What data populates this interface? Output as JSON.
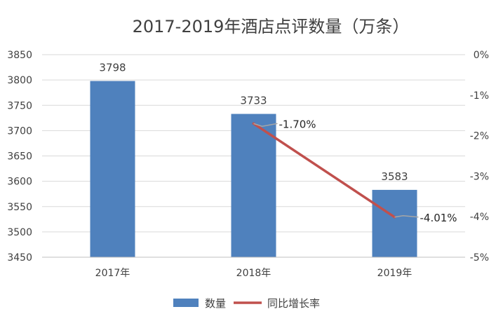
{
  "chart_data": {
    "type": "bar",
    "title": "2017-2019年酒店点评数量（万条）",
    "categories": [
      "2017年",
      "2018年",
      "2019年"
    ],
    "series": [
      {
        "name": "数量",
        "type": "bar",
        "axis": "left",
        "values": [
          3798,
          3733,
          3583
        ],
        "color": "#4f81bd"
      },
      {
        "name": "同比增长率",
        "type": "line",
        "axis": "right",
        "values": [
          null,
          -1.7,
          -4.01
        ],
        "value_labels": [
          "",
          "-1.70%",
          "-4.01%"
        ],
        "color": "#c0504d"
      }
    ],
    "y_left": {
      "ylim": [
        3450,
        3850
      ],
      "ticks": [
        "3450",
        "3500",
        "3550",
        "3600",
        "3650",
        "3700",
        "3750",
        "3800",
        "3850"
      ]
    },
    "y_right": {
      "ylim": [
        -5,
        0
      ],
      "ticks": [
        "-5%",
        "-4%",
        "-3%",
        "-2%",
        "-1%",
        "0%"
      ]
    },
    "xlabel": "",
    "ylabel": "",
    "grid": true,
    "legend": "bottom-center"
  }
}
